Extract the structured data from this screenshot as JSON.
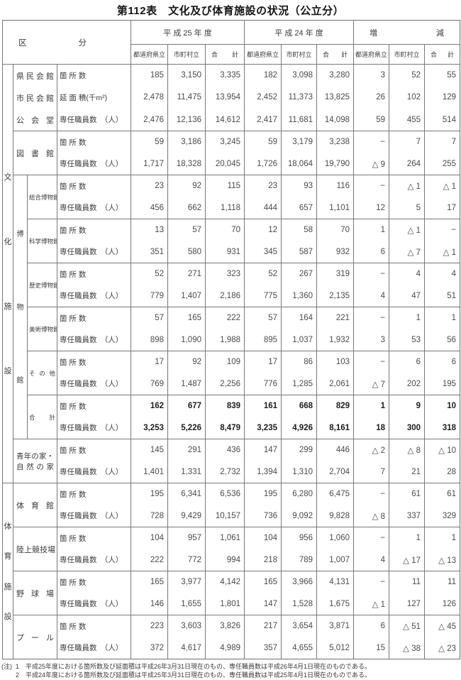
{
  "title": "第112表　文化及び体育施設の状況（公立分）",
  "header": {
    "kubun": "区分",
    "fy_current": "平 成 25 年 度",
    "fy_previous": "平 成 24 年 度",
    "inc_dec": "増減",
    "sub_cols": [
      "都道府県立",
      "市町村立",
      "合計"
    ]
  },
  "row_types": {
    "count": "箇 所 数",
    "area": "延 面 積(千m²)",
    "staff": "専任職員数　（人）"
  },
  "groups": {
    "culture": "文化施設",
    "museum": "博物館",
    "sports": "体育施設"
  },
  "blocks": [
    {
      "label": [
        "県民会館",
        "市民会館",
        "公会堂"
      ],
      "rows": [
        [
          "185",
          "3,150",
          "3,335",
          "182",
          "3,098",
          "3,280",
          "3",
          "52",
          "55"
        ],
        [
          "2,478",
          "11,475",
          "13,954",
          "2,452",
          "11,373",
          "13,825",
          "26",
          "102",
          "129"
        ],
        [
          "2,476",
          "12,136",
          "14,612",
          "2,417",
          "11,681",
          "14,098",
          "59",
          "455",
          "514"
        ]
      ]
    },
    {
      "label": "図書館",
      "rows": [
        [
          "59",
          "3,186",
          "3,245",
          "59",
          "3,179",
          "3,238",
          "−",
          "7",
          "7"
        ],
        [
          "1,717",
          "18,328",
          "20,045",
          "1,726",
          "18,064",
          "19,790",
          "△ 9",
          "264",
          "255"
        ]
      ]
    },
    {
      "label": "総合博物館",
      "rows": [
        [
          "23",
          "92",
          "115",
          "23",
          "93",
          "116",
          "−",
          "△ 1",
          "△ 1"
        ],
        [
          "456",
          "662",
          "1,118",
          "444",
          "657",
          "1,101",
          "12",
          "5",
          "17"
        ]
      ]
    },
    {
      "label": "科学博物館",
      "rows": [
        [
          "13",
          "57",
          "70",
          "12",
          "58",
          "70",
          "1",
          "△ 1",
          "−"
        ],
        [
          "351",
          "580",
          "931",
          "345",
          "587",
          "932",
          "6",
          "△ 7",
          "△ 1"
        ]
      ]
    },
    {
      "label": "歴史博物館",
      "rows": [
        [
          "52",
          "271",
          "323",
          "52",
          "267",
          "319",
          "−",
          "4",
          "4"
        ],
        [
          "779",
          "1,407",
          "2,186",
          "775",
          "1,360",
          "2,135",
          "4",
          "47",
          "51"
        ]
      ]
    },
    {
      "label": "美術博物館",
      "rows": [
        [
          "57",
          "165",
          "222",
          "57",
          "164",
          "221",
          "−",
          "1",
          "1"
        ],
        [
          "898",
          "1,090",
          "1,988",
          "895",
          "1,037",
          "1,932",
          "3",
          "53",
          "56"
        ]
      ]
    },
    {
      "label": "その他",
      "rows": [
        [
          "17",
          "92",
          "109",
          "17",
          "86",
          "103",
          "−",
          "6",
          "6"
        ],
        [
          "769",
          "1,487",
          "2,256",
          "776",
          "1,285",
          "2,061",
          "△ 7",
          "202",
          "195"
        ]
      ]
    },
    {
      "label": "合計",
      "rows": [
        [
          "162",
          "677",
          "839",
          "161",
          "668",
          "829",
          "1",
          "9",
          "10"
        ],
        [
          "3,253",
          "5,226",
          "8,479",
          "3,235",
          "4,926",
          "8,161",
          "18",
          "300",
          "318"
        ]
      ]
    },
    {
      "label": [
        "青年の家・",
        "自然の家"
      ],
      "rows": [
        [
          "145",
          "291",
          "436",
          "147",
          "299",
          "446",
          "△ 2",
          "△ 8",
          "△ 10"
        ],
        [
          "1,401",
          "1,331",
          "2,732",
          "1,394",
          "1,310",
          "2,704",
          "7",
          "21",
          "28"
        ]
      ]
    },
    {
      "label": "体育館",
      "rows": [
        [
          "195",
          "6,341",
          "6,536",
          "195",
          "6,280",
          "6,475",
          "−",
          "61",
          "61"
        ],
        [
          "728",
          "9,429",
          "10,157",
          "736",
          "9,092",
          "9,828",
          "△ 8",
          "337",
          "329"
        ]
      ]
    },
    {
      "label": "陸上競技場",
      "rows": [
        [
          "104",
          "957",
          "1,061",
          "104",
          "956",
          "1,060",
          "−",
          "1",
          "1"
        ],
        [
          "222",
          "772",
          "994",
          "218",
          "789",
          "1,007",
          "4",
          "△ 17",
          "△ 13"
        ]
      ]
    },
    {
      "label": "野球場",
      "rows": [
        [
          "165",
          "3,977",
          "4,142",
          "165",
          "3,966",
          "4,131",
          "−",
          "11",
          "11"
        ],
        [
          "146",
          "1,655",
          "1,801",
          "147",
          "1,528",
          "1,675",
          "△ 1",
          "127",
          "126"
        ]
      ]
    },
    {
      "label": "プール",
      "rows": [
        [
          "223",
          "3,603",
          "3,826",
          "217",
          "3,654",
          "3,871",
          "6",
          "△ 51",
          "△ 45"
        ],
        [
          "372",
          "4,617",
          "4,989",
          "357",
          "4,655",
          "5,012",
          "15",
          "△ 38",
          "△ 23"
        ]
      ]
    }
  ],
  "notes": {
    "prefix": "(注)",
    "items": [
      {
        "num": "1",
        "text": "平成25年度における箇所数及び延面積は平成26年3月31日現在のもの、専任職員数は平成26年4月1日現在のものである。"
      },
      {
        "num": "2",
        "text": "平成24年度における箇所数及び延面積は平成25年3月31日現在のもの、専任職員数は平成25年4月1日現在のものである。"
      }
    ]
  }
}
